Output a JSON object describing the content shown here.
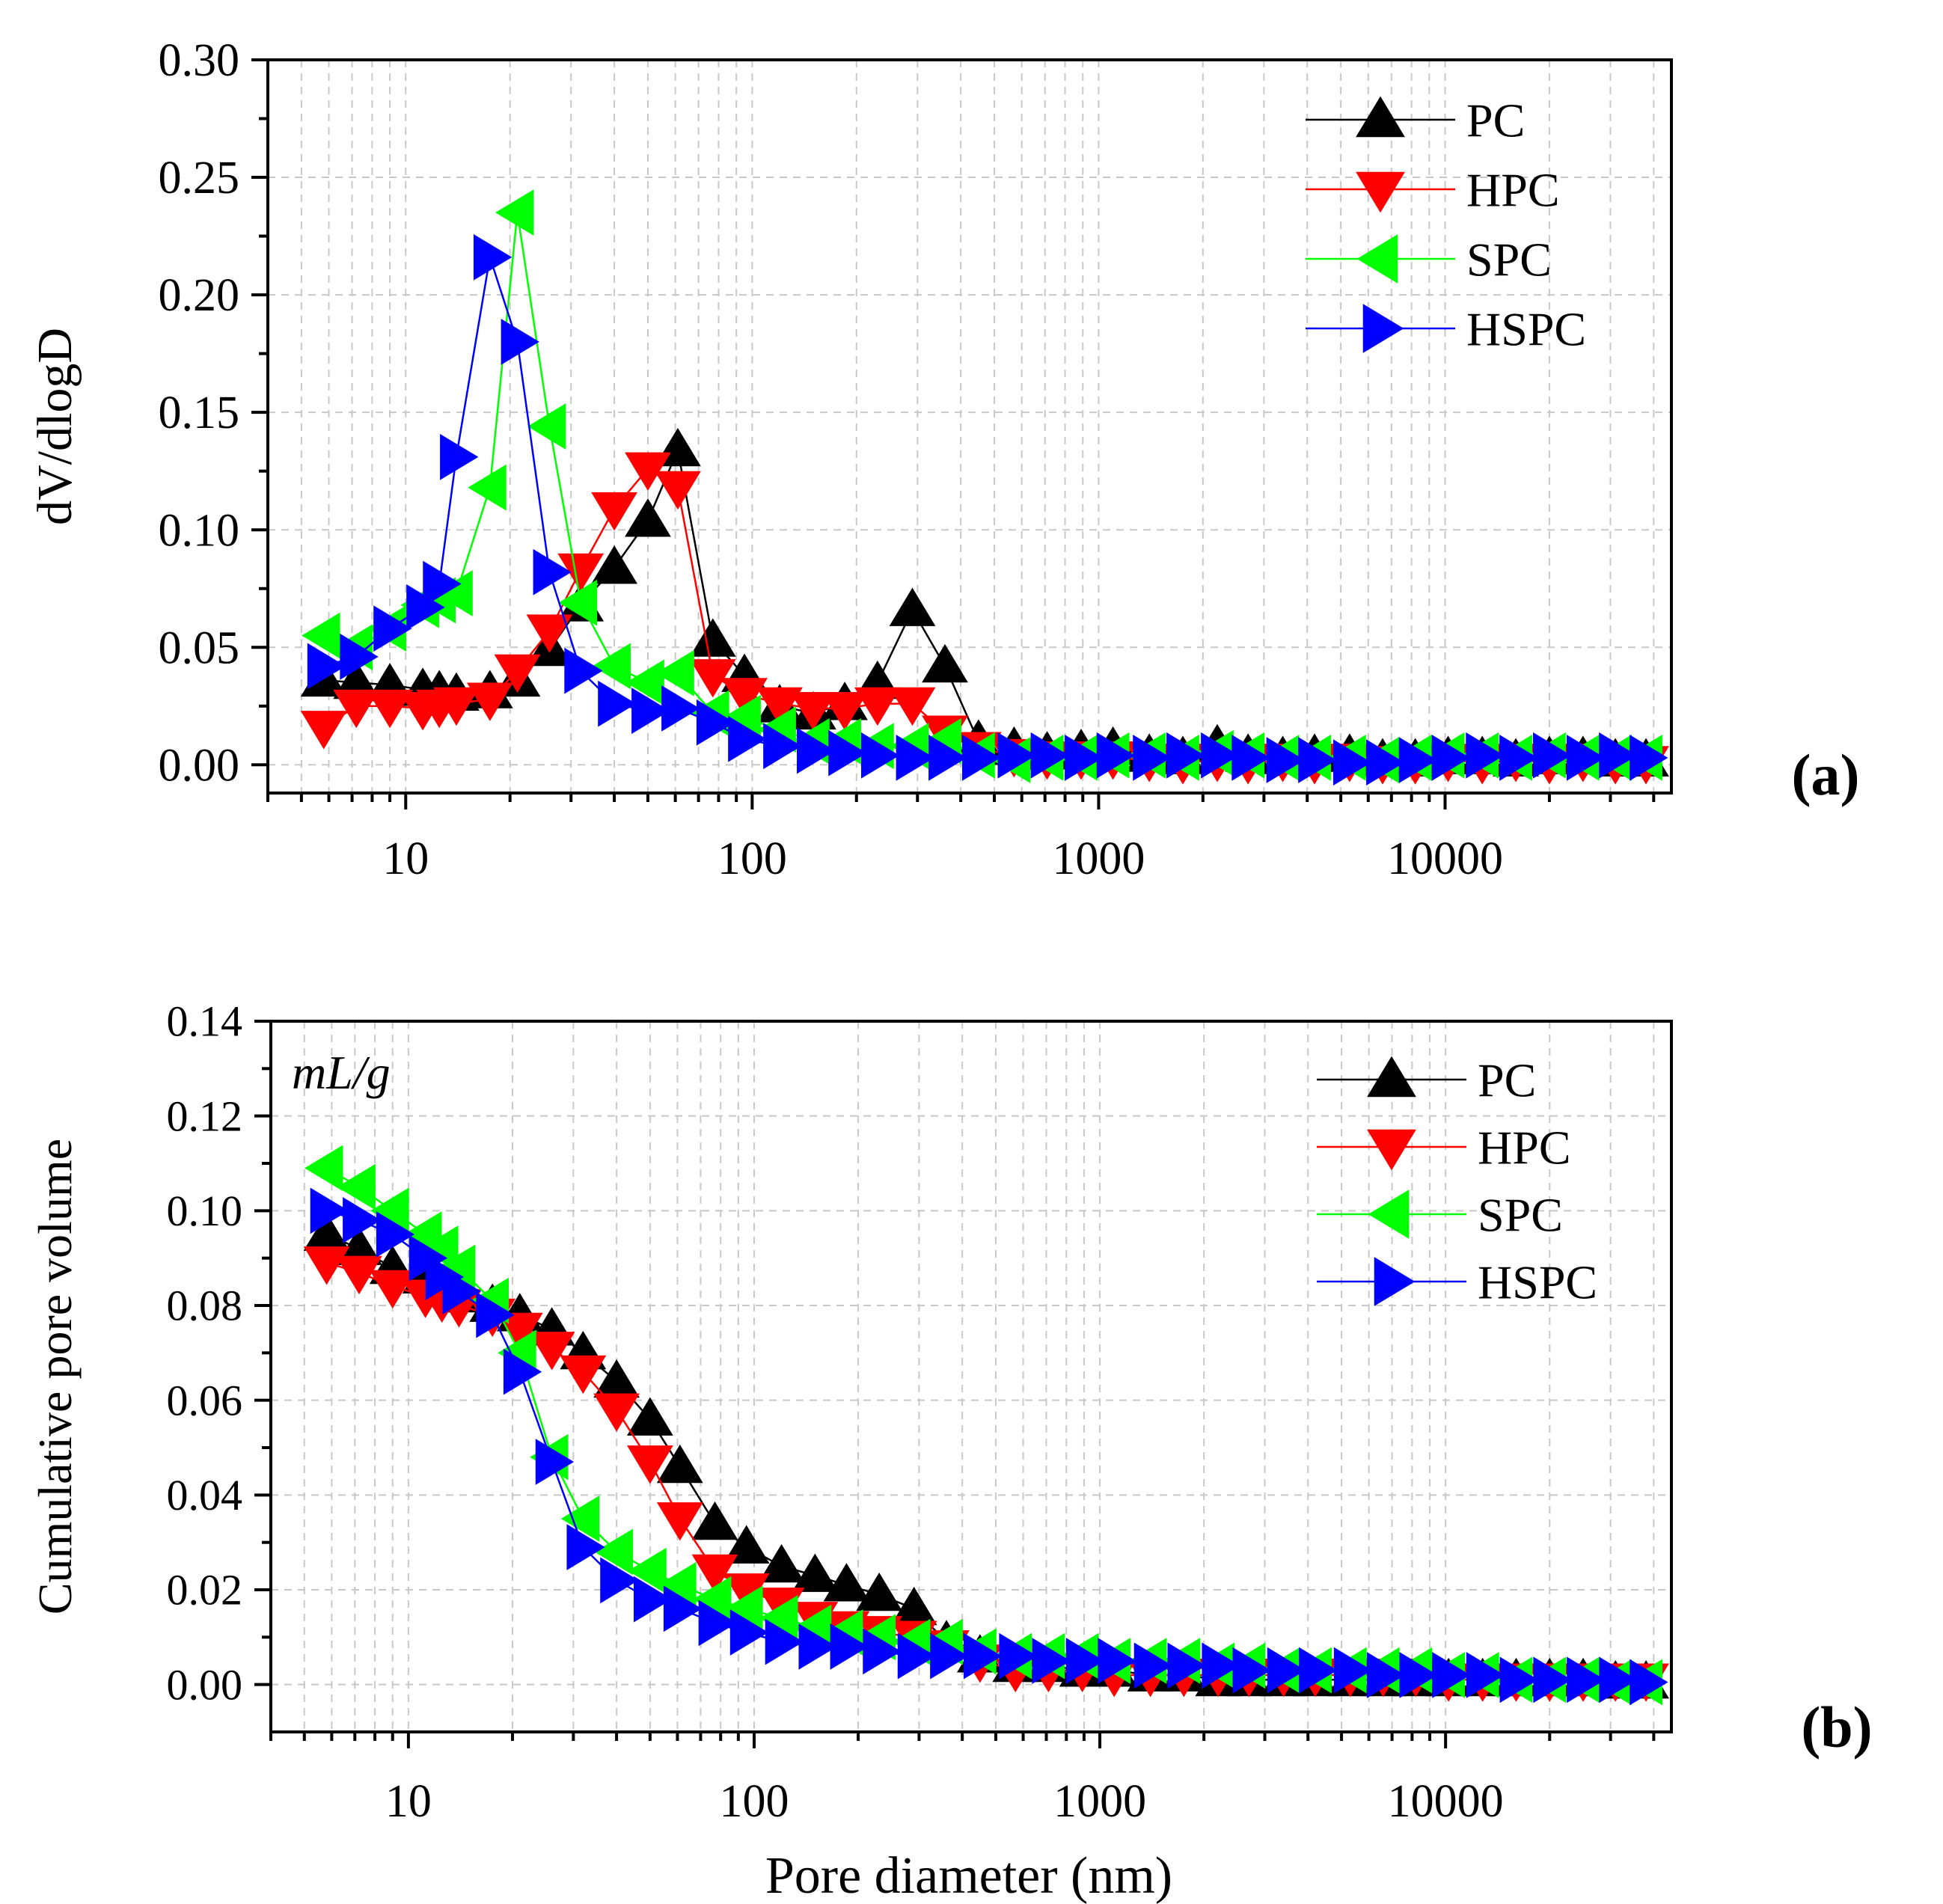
{
  "chart_data": [
    {
      "type": "line",
      "panel_label": "(a)",
      "xlabel": "",
      "ylabel": "dV/dlogD",
      "xscale": "log",
      "xlim": [
        4.0,
        45000
      ],
      "ylim": [
        -0.012,
        0.3
      ],
      "xticks": [
        10,
        100,
        1000,
        10000
      ],
      "xtick_labels": [
        "10",
        "100",
        "1000",
        "10000"
      ],
      "yticks": [
        0.0,
        0.05,
        0.1,
        0.15,
        0.2,
        0.25,
        0.3
      ],
      "ytick_labels": [
        "0.00",
        "0.05",
        "0.10",
        "0.15",
        "0.20",
        "0.25",
        "0.30"
      ],
      "grid": true,
      "legend_position": "top-right",
      "x": [
        5.8,
        7.2,
        9.0,
        11.2,
        12.5,
        14.0,
        17.5,
        21,
        26,
        32,
        40,
        50,
        61,
        77,
        95,
        120,
        150,
        185,
        230,
        290,
        360,
        450,
        570,
        710,
        890,
        1100,
        1400,
        1750,
        2200,
        2700,
        3400,
        4200,
        5300,
        6600,
        8200,
        10200,
        12800,
        16000,
        20000,
        25000,
        31000,
        38000
      ],
      "series": [
        {
          "name": "PC",
          "color": "#000000",
          "marker": "triangle-up",
          "values": [
            0.036,
            0.035,
            0.034,
            0.032,
            0.031,
            0.03,
            0.031,
            0.036,
            0.049,
            0.068,
            0.084,
            0.104,
            0.134,
            0.053,
            0.038,
            0.025,
            0.022,
            0.026,
            0.035,
            0.066,
            0.042,
            0.01,
            0.007,
            0.005,
            0.006,
            0.007,
            0.004,
            0.003,
            0.008,
            0.004,
            0.003,
            0.004,
            0.004,
            0.002,
            0.002,
            0.003,
            0.003,
            0.002,
            0.003,
            0.003,
            0.002,
            0.002
          ]
        },
        {
          "name": "HPC",
          "color": "#ff0000",
          "marker": "triangle-down",
          "values": [
            0.016,
            0.025,
            0.025,
            0.024,
            0.025,
            0.026,
            0.028,
            0.04,
            0.057,
            0.083,
            0.109,
            0.126,
            0.118,
            0.038,
            0.03,
            0.026,
            0.024,
            0.024,
            0.026,
            0.026,
            0.014,
            0.007,
            0.004,
            0.003,
            0.003,
            0.003,
            0.002,
            0.001,
            0.002,
            0.001,
            0.002,
            0.001,
            0.002,
            0.001,
            0.001,
            0.002,
            0.001,
            0.002,
            0.001,
            0.002,
            0.001,
            0.001
          ]
        },
        {
          "name": "SPC",
          "color": "#00ff00",
          "marker": "triangle-left",
          "values": [
            0.055,
            0.05,
            0.058,
            0.068,
            0.07,
            0.073,
            0.118,
            0.235,
            0.144,
            0.069,
            0.042,
            0.035,
            0.039,
            0.022,
            0.02,
            0.015,
            0.01,
            0.01,
            0.008,
            0.008,
            0.01,
            0.004,
            0.002,
            0.003,
            0.003,
            0.004,
            0.004,
            0.003,
            0.005,
            0.004,
            0.003,
            0.003,
            0.003,
            0.002,
            0.003,
            0.004,
            0.004,
            0.003,
            0.004,
            0.003,
            0.003,
            0.003
          ]
        },
        {
          "name": "HSPC",
          "color": "#0000ff",
          "marker": "triangle-right",
          "values": [
            0.042,
            0.046,
            0.058,
            0.067,
            0.077,
            0.131,
            0.216,
            0.18,
            0.082,
            0.04,
            0.026,
            0.023,
            0.024,
            0.018,
            0.011,
            0.008,
            0.006,
            0.005,
            0.004,
            0.003,
            0.003,
            0.003,
            0.004,
            0.004,
            0.003,
            0.004,
            0.003,
            0.004,
            0.004,
            0.003,
            0.002,
            0.002,
            0.001,
            0.001,
            0.002,
            0.003,
            0.004,
            0.003,
            0.004,
            0.003,
            0.004,
            0.003
          ]
        }
      ]
    },
    {
      "type": "line",
      "panel_label": "(b)",
      "annotation": "mL/g",
      "xlabel": "Pore diameter (nm)",
      "ylabel": "Cumulative pore volume",
      "xscale": "log",
      "xlim": [
        4.0,
        45000
      ],
      "ylim": [
        -0.01,
        0.14
      ],
      "xticks": [
        10,
        100,
        1000,
        10000
      ],
      "xtick_labels": [
        "10",
        "100",
        "1000",
        "10000"
      ],
      "yticks": [
        0.0,
        0.02,
        0.04,
        0.06,
        0.08,
        0.1,
        0.12,
        0.14
      ],
      "ytick_labels": [
        "0.00",
        "0.02",
        "0.04",
        "0.06",
        "0.08",
        "0.10",
        "0.12",
        "0.14"
      ],
      "grid": true,
      "legend_position": "top-right",
      "x": [
        5.8,
        7.2,
        9.0,
        11.2,
        12.5,
        14.0,
        17.5,
        21,
        26,
        32,
        40,
        50,
        61,
        77,
        95,
        120,
        150,
        185,
        230,
        290,
        360,
        450,
        570,
        710,
        890,
        1100,
        1400,
        1750,
        2200,
        2700,
        3400,
        4200,
        5300,
        6600,
        8200,
        10200,
        12800,
        16000,
        20000,
        25000,
        31000,
        38000
      ],
      "series": [
        {
          "name": "PC",
          "color": "#000000",
          "marker": "triangle-up",
          "values": [
            0.095,
            0.092,
            0.088,
            0.086,
            0.084,
            0.082,
            0.08,
            0.078,
            0.075,
            0.07,
            0.064,
            0.056,
            0.046,
            0.034,
            0.029,
            0.025,
            0.023,
            0.021,
            0.019,
            0.016,
            0.009,
            0.006,
            0.004,
            0.004,
            0.003,
            0.003,
            0.002,
            0.002,
            0.001,
            0.001,
            0.001,
            0.001,
            0.001,
            0.001,
            0.001,
            0.001,
            0.001,
            0.001,
            0.001,
            0.001,
            0.0005,
            0.0005
          ]
        },
        {
          "name": "HPC",
          "color": "#ff0000",
          "marker": "triangle-down",
          "values": [
            0.089,
            0.087,
            0.084,
            0.082,
            0.081,
            0.08,
            0.078,
            0.075,
            0.071,
            0.066,
            0.058,
            0.047,
            0.035,
            0.024,
            0.02,
            0.017,
            0.014,
            0.012,
            0.011,
            0.01,
            0.008,
            0.005,
            0.003,
            0.003,
            0.003,
            0.002,
            0.002,
            0.002,
            0.002,
            0.002,
            0.002,
            0.002,
            0.002,
            0.002,
            0.002,
            0.001,
            0.001,
            0.001,
            0.001,
            0.001,
            0.001,
            0.001
          ]
        },
        {
          "name": "SPC",
          "color": "#00ff00",
          "marker": "triangle-left",
          "values": [
            0.109,
            0.105,
            0.1,
            0.095,
            0.092,
            0.088,
            0.081,
            0.07,
            0.048,
            0.035,
            0.028,
            0.024,
            0.021,
            0.018,
            0.016,
            0.014,
            0.012,
            0.011,
            0.01,
            0.009,
            0.009,
            0.007,
            0.006,
            0.006,
            0.006,
            0.005,
            0.005,
            0.005,
            0.004,
            0.004,
            0.003,
            0.003,
            0.003,
            0.003,
            0.003,
            0.002,
            0.002,
            0.001,
            0.001,
            0.001,
            0.0005,
            0.0005
          ]
        },
        {
          "name": "HSPC",
          "color": "#0000ff",
          "marker": "triangle-right",
          "values": [
            0.1,
            0.098,
            0.095,
            0.09,
            0.086,
            0.083,
            0.078,
            0.066,
            0.047,
            0.029,
            0.022,
            0.018,
            0.016,
            0.013,
            0.011,
            0.009,
            0.008,
            0.008,
            0.007,
            0.006,
            0.006,
            0.006,
            0.006,
            0.005,
            0.005,
            0.005,
            0.004,
            0.004,
            0.004,
            0.003,
            0.003,
            0.003,
            0.003,
            0.002,
            0.002,
            0.002,
            0.002,
            0.001,
            0.001,
            0.001,
            0.001,
            0.0005
          ]
        }
      ]
    }
  ]
}
